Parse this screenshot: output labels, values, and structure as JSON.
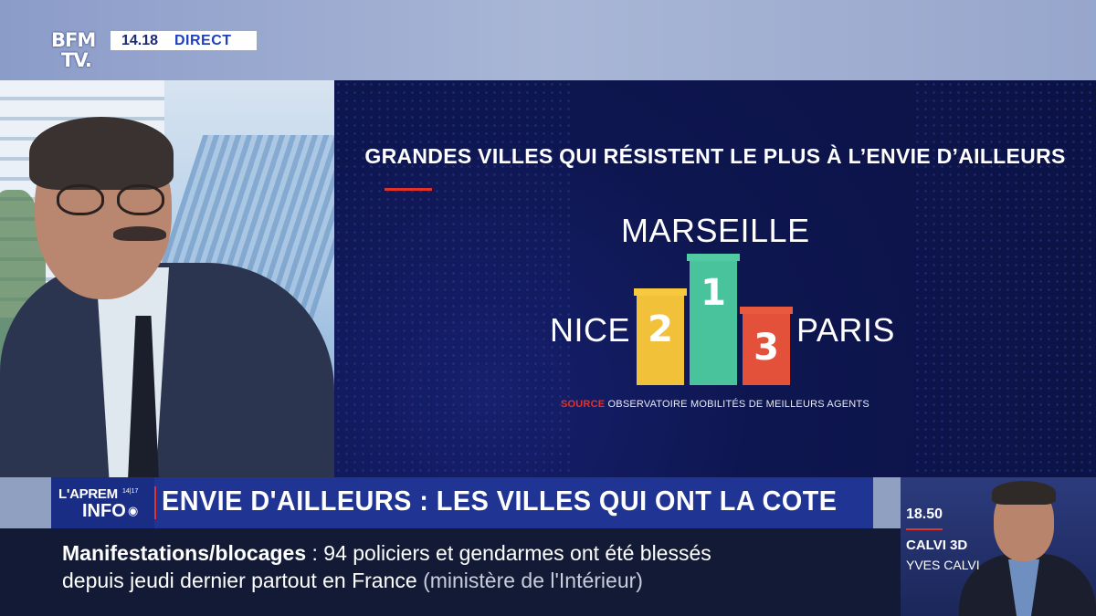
{
  "channel": {
    "logo_line1": "BFM",
    "logo_line2": "TV.",
    "time": "14.18",
    "live_label": "DIRECT"
  },
  "graphic": {
    "title": "GRANDES VILLES QUI RÉSISTENT LE PLUS À L’ENVIE D’AILLEURS",
    "podium": [
      {
        "rank": "1",
        "city": "MARSEILLE",
        "color": "#49c39b"
      },
      {
        "rank": "2",
        "city": "NICE",
        "color": "#f2c13a"
      },
      {
        "rank": "3",
        "city": "PARIS",
        "color": "#e3513b"
      }
    ],
    "source_label": "SOURCE",
    "source_text": "OBSERVATOIRE MOBILITÉS DE MEILLEURS AGENTS"
  },
  "show": {
    "name_line1": "L'APREM",
    "name_line2": "INFO",
    "clock": "14|17"
  },
  "headline": "ENVIE D'AILLEURS : LES VILLES QUI ONT LA COTE",
  "ticker": {
    "topic": "Manifestations/blocages",
    "separator": ":",
    "text_line1": "94 policiers et gendarmes ont été blessés",
    "text_line2": "depuis jeudi dernier partout en France",
    "source": "(ministère de l'Intérieur)"
  },
  "next_program": {
    "time": "18.50",
    "show": "CALVI 3D",
    "host": "YVES CALVI"
  },
  "colors": {
    "brand_blue": "#1f3493",
    "accent_red": "#e3312b",
    "graphic_bg": "#0e1650"
  }
}
